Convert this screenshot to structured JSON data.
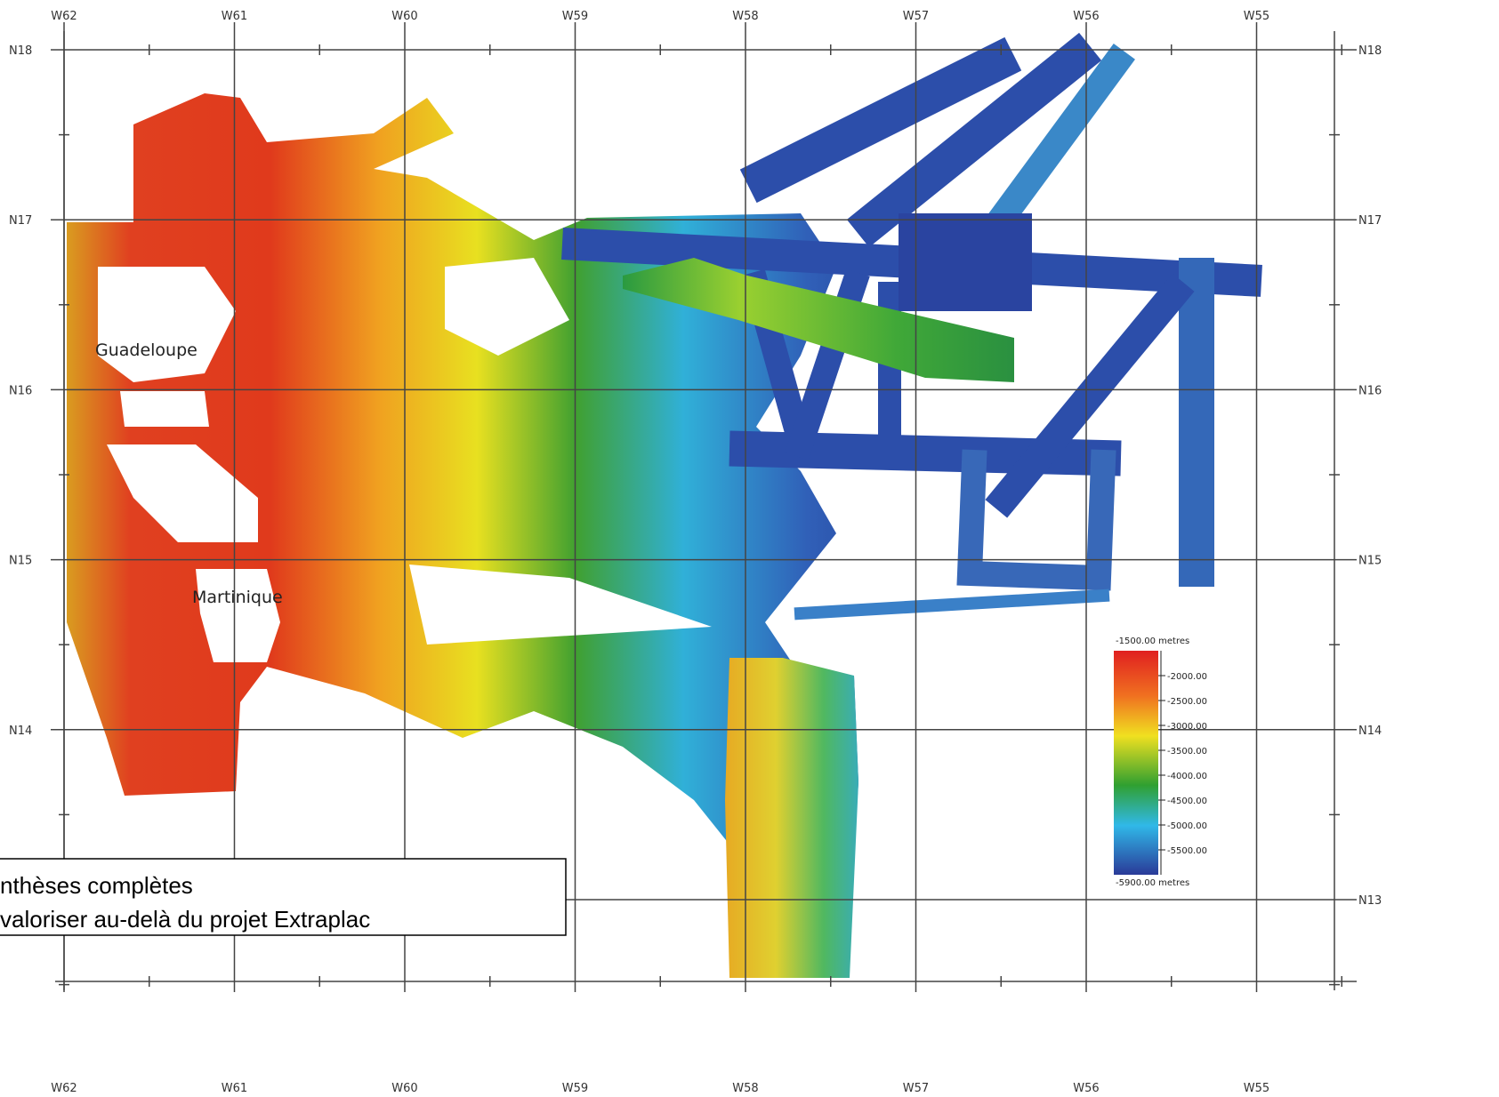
{
  "map": {
    "lon_labels": [
      "W62",
      "W61",
      "W60",
      "W59",
      "W58",
      "W57",
      "W56",
      "W55"
    ],
    "lat_labels": [
      "N18",
      "N17",
      "N16",
      "N15",
      "N14",
      "N13"
    ],
    "places": [
      "Guadeloupe",
      "Martinique"
    ],
    "legend": {
      "top": "-1500.00 metres",
      "ticks": [
        "-2000.00",
        "-2500.00",
        "-3000.00",
        "-3500.00",
        "-4000.00",
        "-4500.00",
        "-5000.00",
        "-5500.00"
      ],
      "bottom": "-5900.00 metres"
    },
    "textbox": [
      "nthèses complètes",
      "valoriser au-delà du projet Extraplac"
    ]
  }
}
